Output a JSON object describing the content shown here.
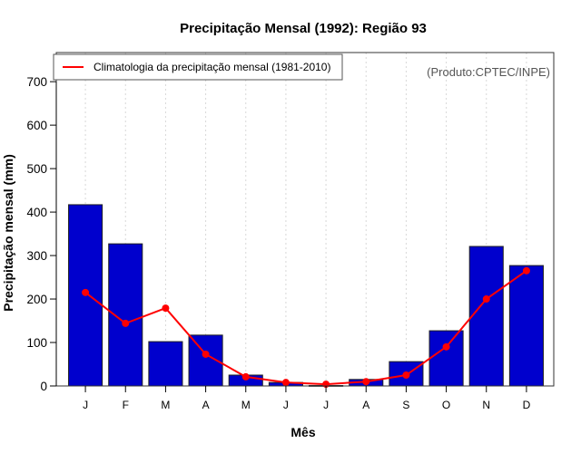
{
  "chart_data": {
    "type": "bar",
    "title": "Precipitação Mensal (1992): Região 93",
    "xlabel": "Mês",
    "ylabel": "Precipitação mensal (mm)",
    "categories": [
      "J",
      "F",
      "M",
      "A",
      "M",
      "J",
      "J",
      "A",
      "S",
      "O",
      "N",
      "D"
    ],
    "ylim": [
      0,
      767
    ],
    "yticks": [
      0,
      100,
      200,
      300,
      400,
      500,
      600,
      700
    ],
    "grid": "vertical dotted",
    "series": [
      {
        "name": "Precipitação mensal (1992)",
        "kind": "bar",
        "color": "#0000CD",
        "values": [
          417,
          327,
          102,
          117,
          25,
          8,
          1,
          15,
          56,
          127,
          321,
          277
        ]
      },
      {
        "name": "Climatologia da precipitação mensal (1981-2010)",
        "kind": "line",
        "color": "#FF0000",
        "values": [
          215,
          144,
          179,
          73,
          21,
          8,
          4,
          10,
          25,
          90,
          200,
          265
        ]
      }
    ],
    "legend": {
      "position": "top-left",
      "entries": [
        "Climatologia da precipitação mensal (1981-2010)"
      ]
    },
    "annotation": "(Produto:CPTEC/INPE)"
  }
}
